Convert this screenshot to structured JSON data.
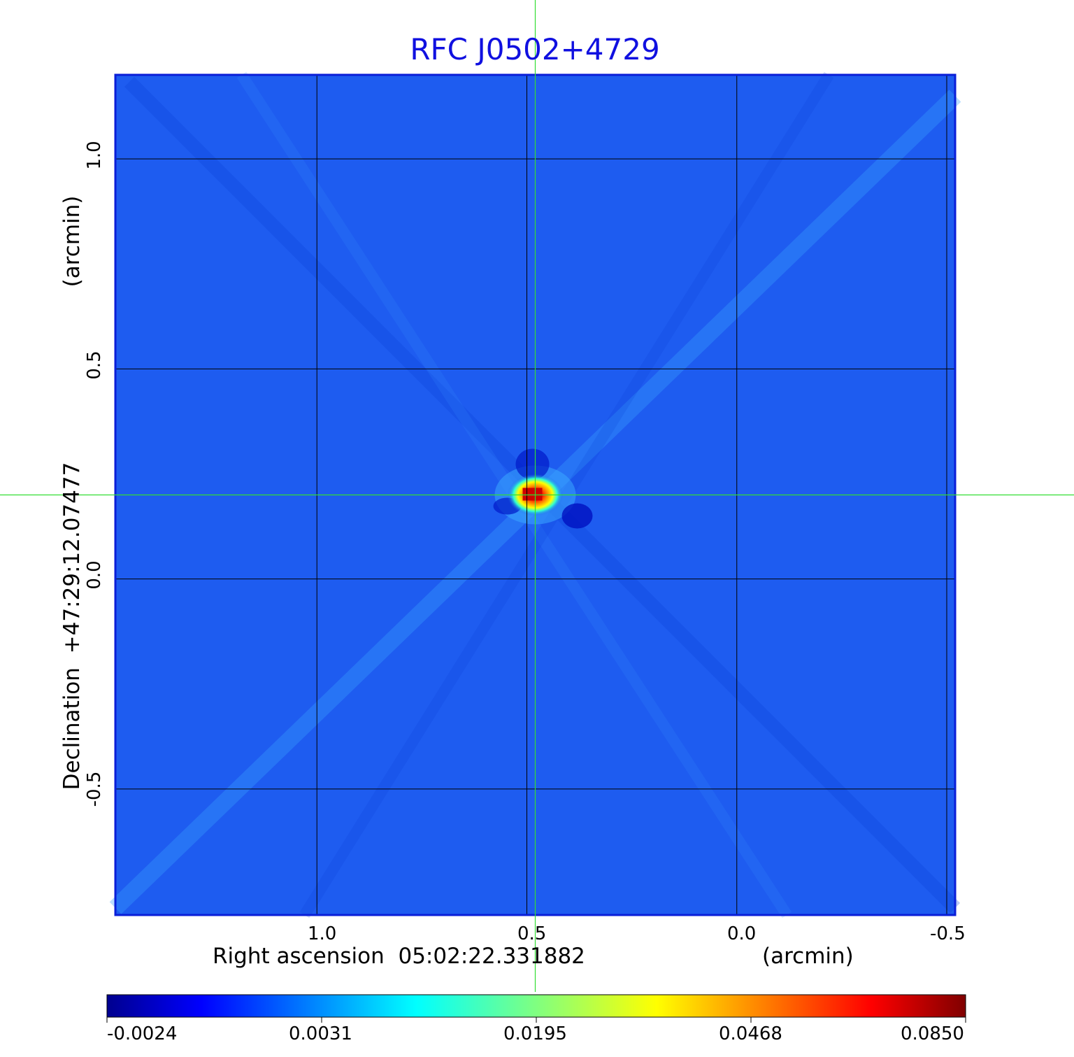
{
  "chart_data": {
    "type": "heatmap",
    "title": "RFC J0502+4729",
    "xlabel_left": "Right ascension  05:02:22.331882",
    "xlabel_right": "(arcmin)",
    "ylabel_left": "Declination  +47:29:12.07477",
    "ylabel_right": "(arcmin)",
    "x_ticks": [
      "1.0",
      "0.5",
      "0.0",
      "-0.5"
    ],
    "x_tick_values": [
      1.0,
      0.5,
      0.0,
      -0.5
    ],
    "y_ticks": [
      "1.0",
      "0.5",
      "0.0",
      "-0.5"
    ],
    "y_tick_values": [
      1.0,
      0.5,
      0.0,
      -0.5
    ],
    "xlim": [
      1.48,
      -0.52
    ],
    "ylim": [
      -0.8,
      1.2
    ],
    "grid": true,
    "colormap": "jet",
    "colorbar_ticks": [
      "-0.0024",
      "0.0031",
      "0.0195",
      "0.0468",
      "0.0850"
    ],
    "colorbar_range": [
      -0.0024,
      0.085
    ],
    "peak": {
      "x": 0.48,
      "y": 0.2,
      "value": 0.085
    },
    "crosshair": {
      "x": 0.48,
      "y": 0.2,
      "color": "#33dd33"
    },
    "frame_color": "#0a1ed8",
    "background_color": "#1e5cf0"
  }
}
